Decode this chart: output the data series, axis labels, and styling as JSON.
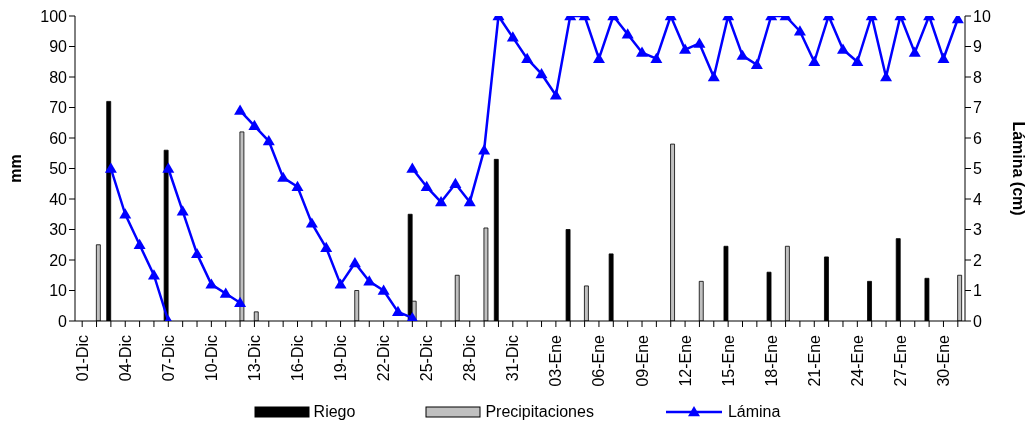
{
  "chart_data": {
    "type": "bar",
    "ylabel": "mm",
    "y2label": "Lámina (cm)",
    "categories": [
      "01-Dic",
      null,
      null,
      "04-Dic",
      null,
      null,
      "07-Dic",
      null,
      null,
      "10-Dic",
      null,
      null,
      "13-Dic",
      null,
      null,
      "16-Dic",
      null,
      null,
      "19-Dic",
      null,
      null,
      "22-Dic",
      null,
      null,
      "25-Dic",
      null,
      null,
      "28-Dic",
      null,
      null,
      "31-Dic",
      null,
      null,
      "03-Ene",
      null,
      null,
      "06-Ene",
      null,
      null,
      "09-Ene",
      null,
      null,
      "12-Ene",
      null,
      null,
      "15-Ene",
      null,
      null,
      "18-Ene",
      null,
      null,
      "21-Ene",
      null,
      null,
      "24-Ene",
      null,
      null,
      "27-Ene",
      null,
      null,
      "30-Ene",
      null
    ],
    "series": [
      {
        "name": "Riego",
        "color": "#000000",
        "values": [
          null,
          null,
          72,
          null,
          null,
          null,
          56,
          null,
          null,
          null,
          null,
          null,
          null,
          null,
          null,
          null,
          null,
          null,
          null,
          null,
          null,
          null,
          null,
          35,
          null,
          null,
          null,
          null,
          null,
          53,
          null,
          null,
          null,
          null,
          30,
          null,
          null,
          22,
          null,
          null,
          null,
          null,
          null,
          null,
          null,
          24.5,
          null,
          null,
          16,
          null,
          null,
          null,
          21,
          null,
          null,
          13,
          null,
          27,
          null,
          14,
          null,
          null
        ]
      },
      {
        "name": "Precipitaciones",
        "color": "#c0c0c0",
        "values": [
          null,
          25,
          null,
          null,
          null,
          null,
          null,
          null,
          null,
          null,
          null,
          62,
          3,
          null,
          null,
          null,
          null,
          null,
          null,
          10,
          null,
          null,
          null,
          6.5,
          null,
          null,
          15,
          null,
          30.5,
          null,
          null,
          null,
          null,
          null,
          null,
          11.5,
          null,
          null,
          null,
          null,
          null,
          58,
          null,
          13,
          null,
          null,
          null,
          null,
          null,
          24.5,
          null,
          null,
          null,
          null,
          null,
          null,
          null,
          null,
          null,
          null,
          null,
          15
        ]
      },
      {
        "name": "Lámina",
        "type": "line",
        "axis": "y2",
        "color": "#0000ff",
        "values": [
          null,
          null,
          5,
          3.5,
          2.5,
          1.5,
          0,
          null,
          null,
          null,
          null,
          null,
          null,
          null,
          null,
          null,
          null,
          null,
          null,
          null,
          null,
          null,
          null,
          null,
          null,
          null,
          null,
          null,
          null,
          null,
          null,
          null,
          null,
          null,
          null,
          null,
          null,
          null,
          null,
          null,
          null,
          null,
          null,
          null,
          null,
          null,
          null,
          null,
          null,
          null,
          null,
          null,
          null,
          null,
          null,
          null,
          null,
          null,
          null,
          null,
          null,
          null
        ]
      },
      {
        "type": "line",
        "axis": "y2",
        "color": "#0000ff",
        "values": [
          null,
          null,
          null,
          null,
          null,
          null,
          5,
          3.6,
          2.2,
          1.2,
          0.9,
          0.6,
          null,
          null,
          null,
          null,
          null,
          null,
          null,
          null,
          null,
          null,
          null,
          null,
          null,
          null,
          null,
          null,
          null,
          null,
          null,
          null,
          null,
          null,
          null,
          null,
          null,
          null,
          null,
          null,
          null,
          null,
          null,
          null,
          null,
          null,
          null,
          null,
          null,
          null,
          null,
          null,
          null,
          null,
          null,
          null,
          null,
          null,
          null,
          null,
          null,
          null
        ]
      },
      {
        "type": "line",
        "axis": "y2",
        "color": "#0000ff",
        "values": [
          null,
          null,
          null,
          null,
          null,
          null,
          null,
          null,
          null,
          null,
          null,
          6.9,
          6.4,
          5.9,
          4.7,
          4.4,
          3.2,
          2.4,
          1.2,
          1.9,
          1.3,
          1.0,
          0.3,
          0.1,
          null,
          null,
          null,
          null,
          null,
          null,
          null,
          null,
          null,
          null,
          null,
          null,
          null,
          null,
          null,
          null,
          null,
          null,
          null,
          null,
          null,
          null,
          null,
          null,
          null,
          null,
          null,
          null,
          null,
          null,
          null,
          null,
          null,
          null,
          null,
          null,
          null,
          null
        ]
      },
      {
        "type": "line",
        "axis": "y2",
        "color": "#0000ff",
        "values": [
          null,
          null,
          null,
          null,
          null,
          null,
          null,
          null,
          null,
          null,
          null,
          null,
          null,
          null,
          null,
          null,
          null,
          null,
          null,
          null,
          null,
          null,
          null,
          5,
          4.4,
          3.9,
          4.5,
          3.9,
          5.6,
          10,
          9.3,
          8.6,
          8.1,
          7.4,
          10,
          10,
          8.6,
          10,
          9.4,
          8.8,
          8.6,
          10,
          8.9,
          9.1,
          8.0,
          10,
          8.7,
          8.4,
          10,
          10,
          9.5,
          8.5,
          10,
          8.9,
          8.5,
          10,
          8.0,
          10,
          8.8,
          10,
          8.6,
          9.9
        ]
      }
    ],
    "ylim": [
      0,
      100
    ],
    "yticks": [
      0,
      10,
      20,
      30,
      40,
      50,
      60,
      70,
      80,
      90,
      100
    ],
    "y2lim": [
      0,
      10
    ],
    "y2ticks": [
      0,
      1,
      2,
      3,
      4,
      5,
      6,
      7,
      8,
      9,
      10
    ],
    "legend": "bottom",
    "marker": "triangle",
    "grid": false
  }
}
